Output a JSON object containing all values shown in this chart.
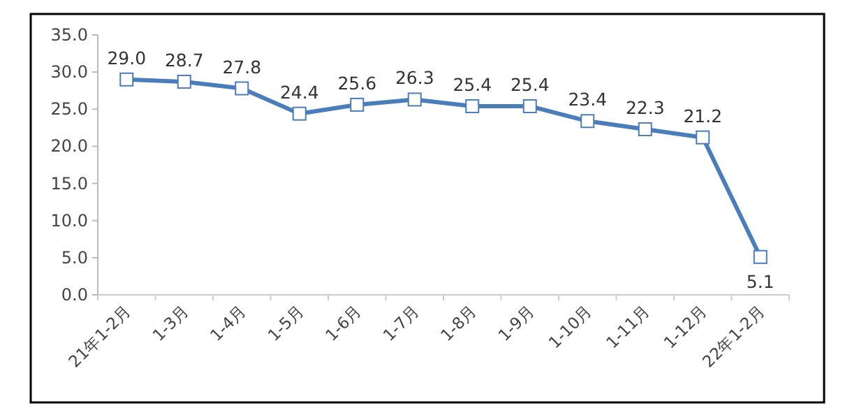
{
  "chart_data": {
    "type": "line",
    "categories": [
      "21年1-2月",
      "1-3月",
      "1-4月",
      "1-5月",
      "1-6月",
      "1-7月",
      "1-8月",
      "1-9月",
      "1-10月",
      "1-11月",
      "1-12月",
      "22年1-2月"
    ],
    "values": [
      29.0,
      28.7,
      27.8,
      24.4,
      25.6,
      26.3,
      25.4,
      25.4,
      23.4,
      22.3,
      21.2,
      5.1
    ],
    "value_labels": [
      "29.0",
      "28.7",
      "27.8",
      "24.4",
      "25.6",
      "26.3",
      "25.4",
      "25.4",
      "23.4",
      "22.3",
      "21.2",
      "5.1"
    ],
    "color": "#4a7ebb",
    "marker": "square",
    "ylim": [
      0,
      35
    ],
    "yticks": [
      {
        "value": 0,
        "label": "0.0"
      },
      {
        "value": 5,
        "label": "5.0"
      },
      {
        "value": 10,
        "label": "10.0"
      },
      {
        "value": 15,
        "label": "15.0"
      },
      {
        "value": 20,
        "label": "20.0"
      },
      {
        "value": 25,
        "label": "25.0"
      },
      {
        "value": 30,
        "label": "30.0"
      },
      {
        "value": 35,
        "label": "35.0"
      }
    ]
  }
}
